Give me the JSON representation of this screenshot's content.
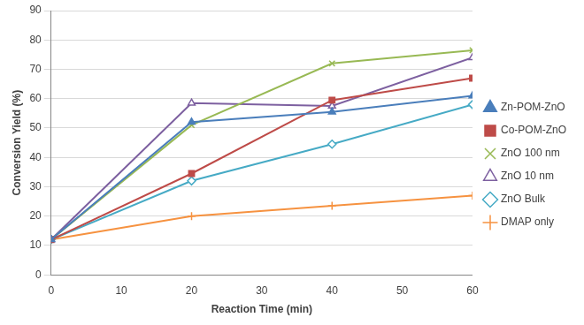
{
  "chart_data": {
    "type": "line",
    "x_label": "Reaction Time (min)",
    "y_label": "Conversion Yield (%)",
    "x": [
      0,
      20,
      40,
      60
    ],
    "xlim": [
      0,
      60
    ],
    "xticks": [
      0,
      10,
      20,
      30,
      40,
      50,
      60
    ],
    "ylim": [
      0,
      90
    ],
    "yticks": [
      0,
      10,
      20,
      30,
      40,
      50,
      60,
      70,
      80,
      90
    ],
    "grid": "y",
    "legend": "right",
    "series": [
      {
        "name": "Zn-POM-ZnO",
        "color": "#4a7ebb",
        "marker": "triangle",
        "values": [
          12,
          52,
          55.5,
          61
        ]
      },
      {
        "name": "Co-POM-ZnO",
        "color": "#be4b48",
        "marker": "square",
        "values": [
          12,
          34.5,
          59.5,
          67
        ]
      },
      {
        "name": "ZnO 100 nm",
        "color": "#98b954",
        "marker": "x",
        "values": [
          12,
          51,
          72,
          76.5
        ]
      },
      {
        "name": "ZnO 10 nm",
        "color": "#7d60a0",
        "marker": "triangle-open",
        "values": [
          12,
          58.5,
          57.5,
          74
        ]
      },
      {
        "name": "ZnO Bulk",
        "color": "#46aac5",
        "marker": "diamond-open",
        "values": [
          12,
          32,
          44.5,
          58
        ]
      },
      {
        "name": "DMAP only",
        "color": "#f69240",
        "marker": "plus",
        "values": [
          12,
          20,
          23.5,
          27
        ]
      }
    ]
  }
}
